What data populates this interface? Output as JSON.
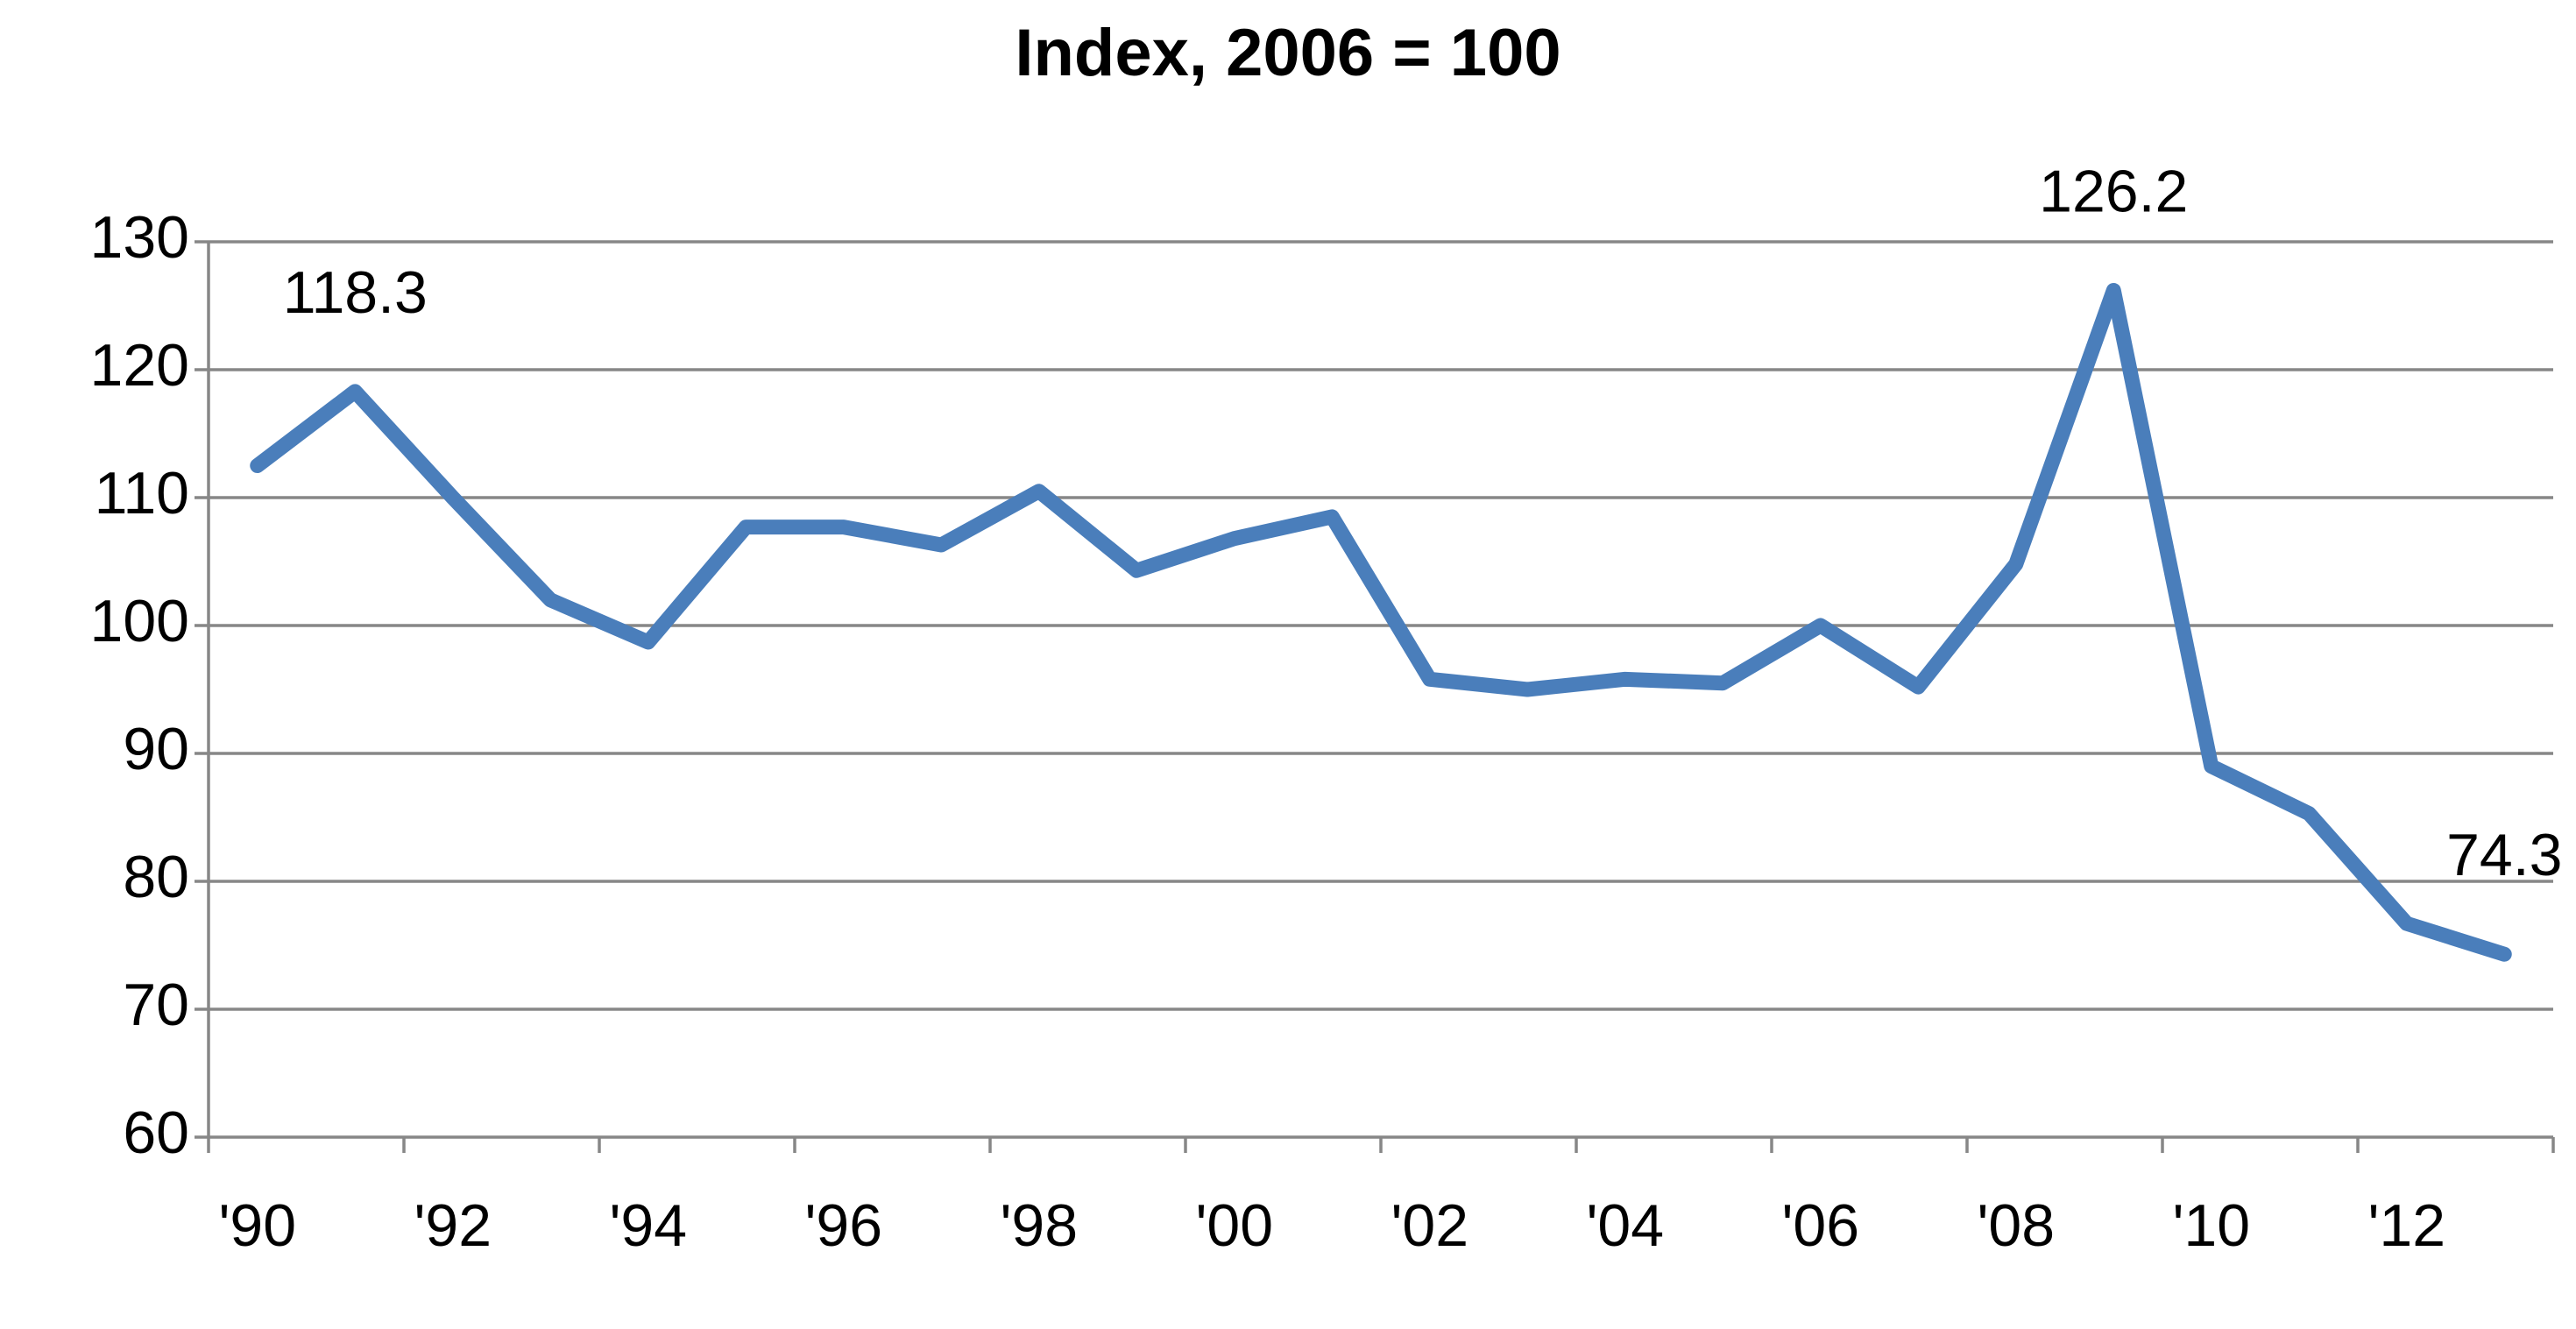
{
  "chart_data": {
    "type": "line",
    "title": "Index, 2006 = 100",
    "categories": [
      "'90",
      null,
      "'92",
      null,
      "'94",
      null,
      "'96",
      null,
      "'98",
      null,
      "'00",
      null,
      "'02",
      null,
      "'04",
      null,
      "'06",
      null,
      "'08",
      null,
      "'10",
      null,
      "'12",
      null
    ],
    "series": [
      {
        "name": "Index",
        "color": "#4a7ebb",
        "values": [
          112.5,
          118.3,
          110,
          102,
          98.7,
          107.7,
          107.7,
          106.3,
          110.5,
          104.3,
          106.8,
          108.5,
          95.8,
          95,
          95.8,
          95.5,
          100,
          95.2,
          104.8,
          126.2,
          89,
          85.3,
          76.7,
          74.3
        ],
        "value_labels": [
          null,
          "118.3",
          null,
          null,
          null,
          null,
          null,
          null,
          null,
          null,
          null,
          null,
          null,
          null,
          null,
          null,
          null,
          null,
          null,
          "126.2",
          null,
          null,
          null,
          "74.3"
        ]
      }
    ],
    "ylim": [
      60,
      130
    ],
    "yticks": [
      60,
      70,
      80,
      90,
      100,
      110,
      120,
      130
    ],
    "grid": true
  }
}
